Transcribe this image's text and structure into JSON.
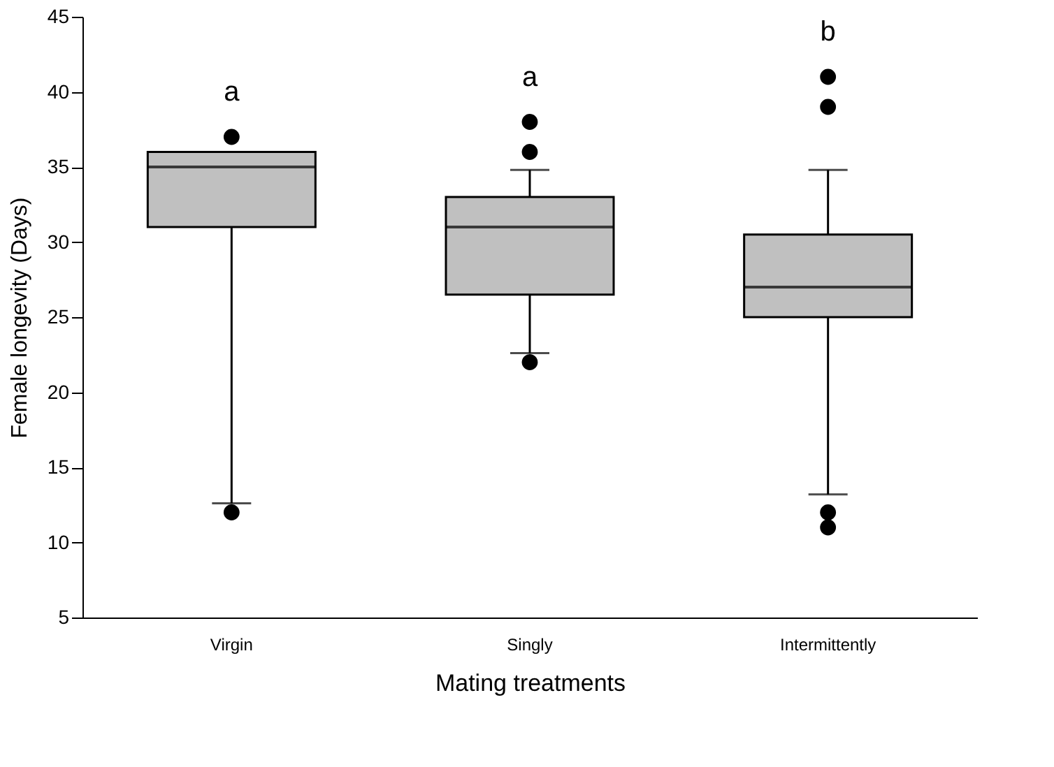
{
  "chart_data": {
    "type": "box",
    "xlabel": "Mating treatments",
    "ylabel": "Female longevity (Days)",
    "categories": [
      "Virgin",
      "Singly",
      "Intermittently"
    ],
    "boxes": [
      {
        "low": 12.6,
        "q1": 31,
        "median": 35,
        "q3": 36,
        "high": 36,
        "outliers": [
          37,
          12
        ]
      },
      {
        "low": 22.6,
        "q1": 26.5,
        "median": 31,
        "q3": 33,
        "high": 34.8,
        "outliers": [
          38,
          36,
          22
        ]
      },
      {
        "low": 13.2,
        "q1": 25,
        "median": 27,
        "q3": 30.5,
        "high": 34.8,
        "outliers": [
          41,
          39,
          12,
          11
        ]
      }
    ],
    "color": "#c0c0c0",
    "ylim": [
      5,
      45
    ],
    "yticks": [
      5,
      10,
      15,
      20,
      25,
      30,
      35,
      40,
      45
    ],
    "grid": false,
    "annotations": [
      "a",
      "a",
      "b"
    ]
  }
}
